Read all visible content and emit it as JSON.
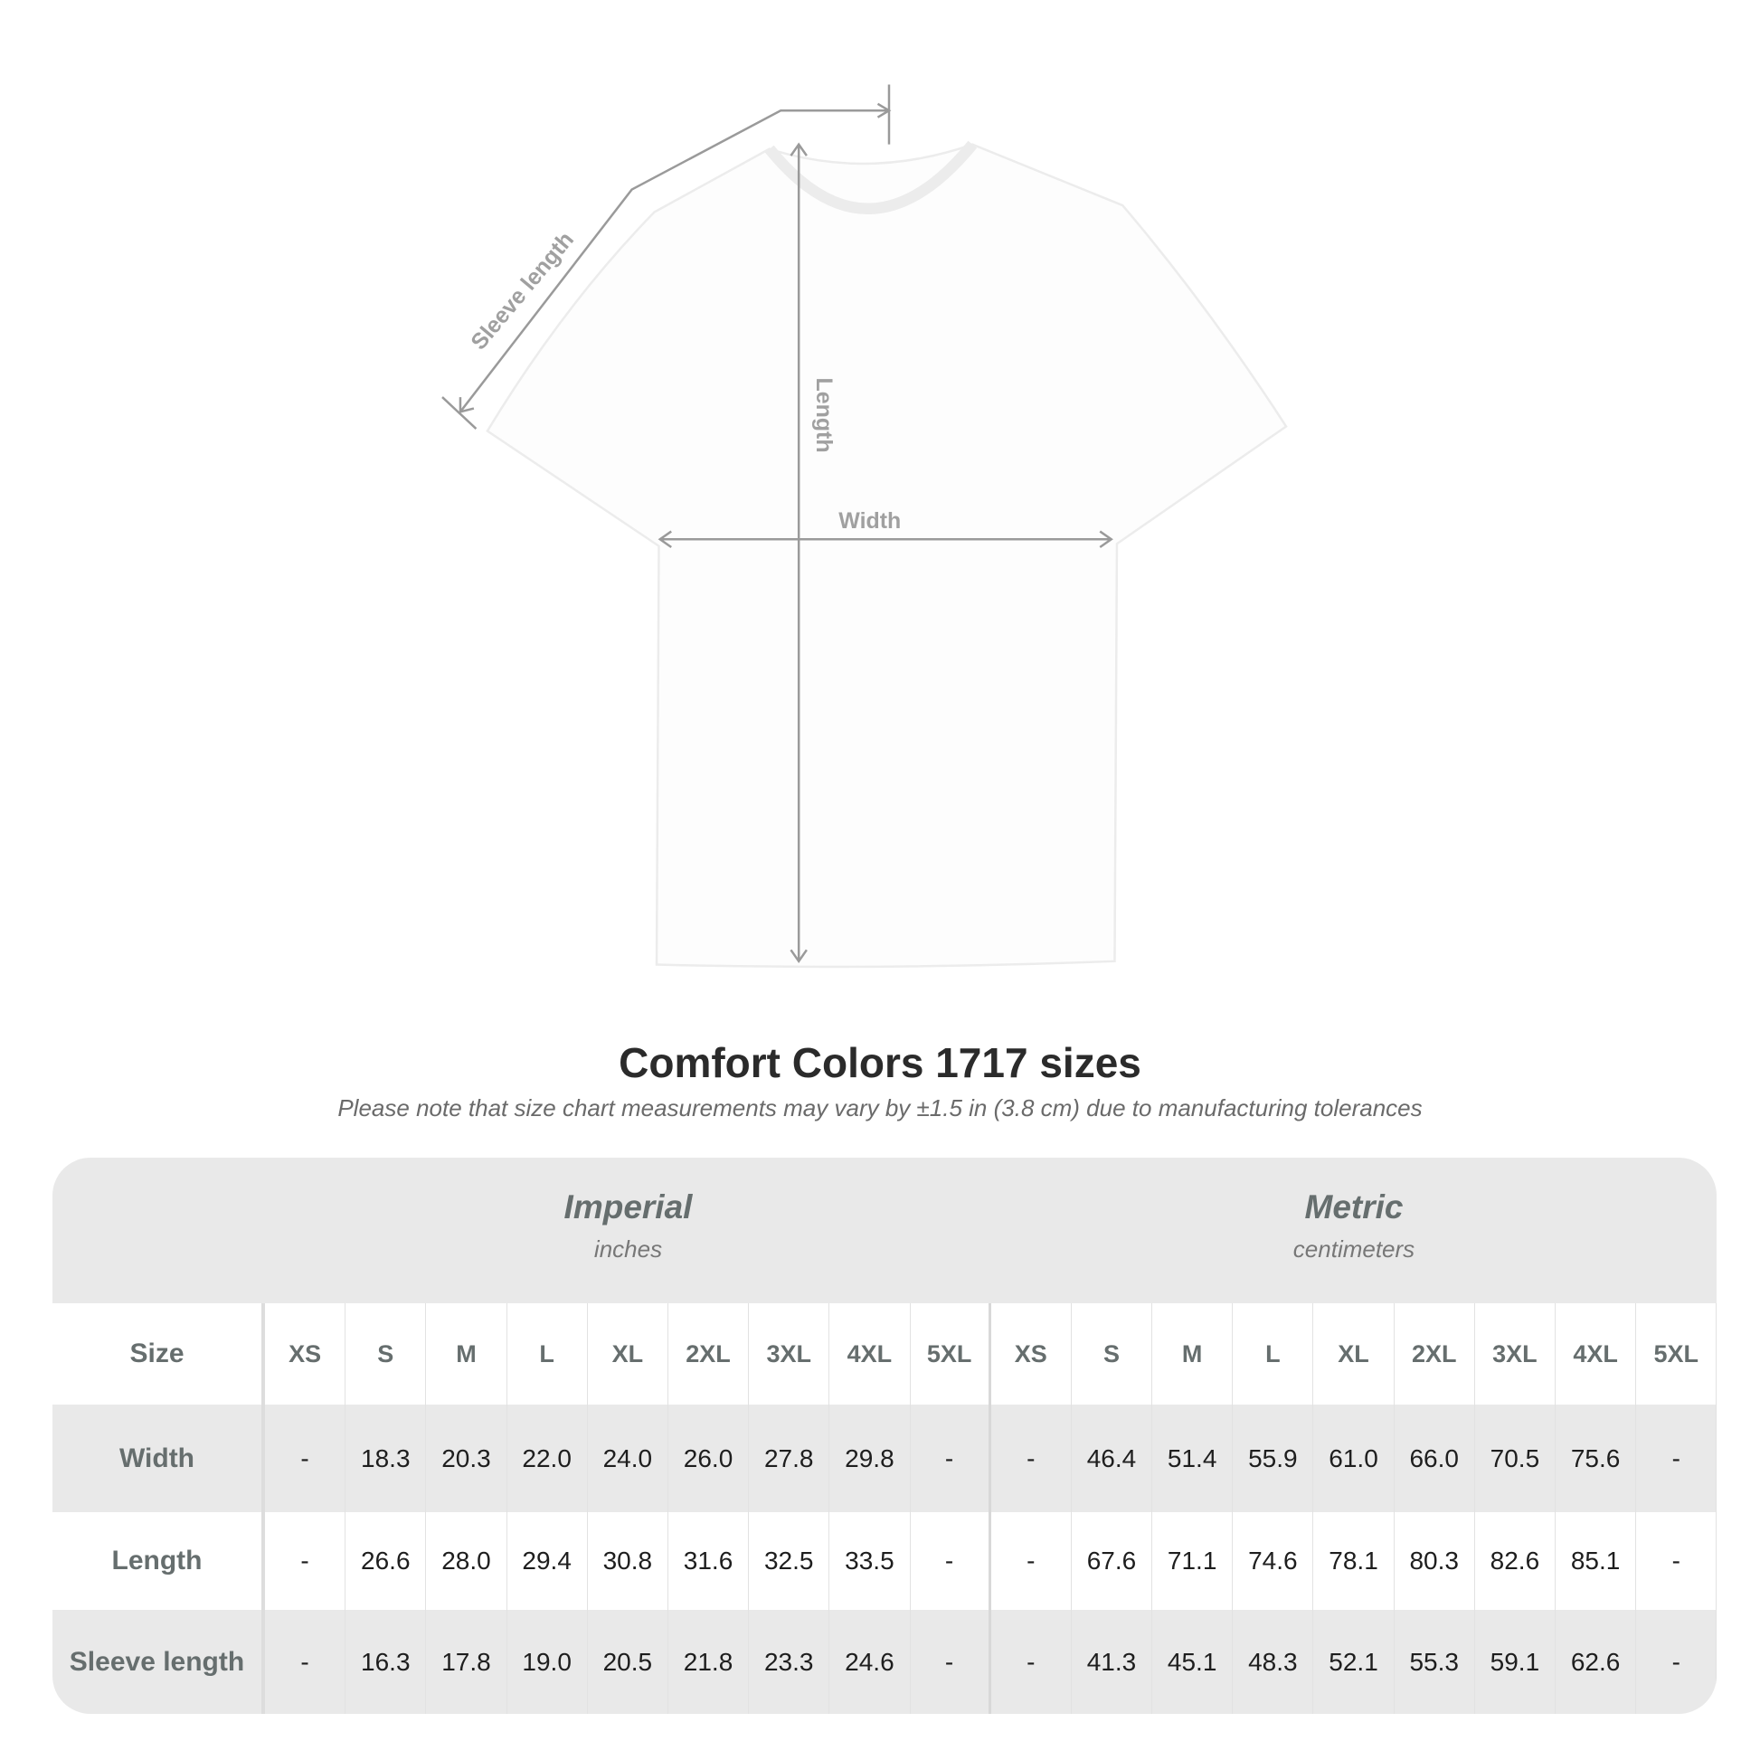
{
  "diagram": {
    "labels": {
      "sleeve": "Sleeve length",
      "length": "Length",
      "width": "Width"
    },
    "shirt_color": "#ffffff",
    "line_color": "#9a9a9a"
  },
  "title": "Comfort Colors 1717 sizes",
  "subtitle": "Please note that size chart measurements may vary by ±1.5 in (3.8 cm) due to manufacturing tolerances",
  "table": {
    "imperial": {
      "name": "Imperial",
      "unit": "inches"
    },
    "metric": {
      "name": "Metric",
      "unit": "centimeters"
    },
    "size_label": "Size",
    "sizes": [
      "XS",
      "S",
      "M",
      "L",
      "XL",
      "2XL",
      "3XL",
      "4XL",
      "5XL"
    ],
    "rows": [
      {
        "label": "Width",
        "imperial": [
          "-",
          "18.3",
          "20.3",
          "22.0",
          "24.0",
          "26.0",
          "27.8",
          "29.8",
          "-"
        ],
        "metric": [
          "-",
          "46.4",
          "51.4",
          "55.9",
          "61.0",
          "66.0",
          "70.5",
          "75.6",
          "-"
        ]
      },
      {
        "label": "Length",
        "imperial": [
          "-",
          "26.6",
          "28.0",
          "29.4",
          "30.8",
          "31.6",
          "32.5",
          "33.5",
          "-"
        ],
        "metric": [
          "-",
          "67.6",
          "71.1",
          "74.6",
          "78.1",
          "80.3",
          "82.6",
          "85.1",
          "-"
        ]
      },
      {
        "label": "Sleeve length",
        "imperial": [
          "-",
          "16.3",
          "17.8",
          "19.0",
          "20.5",
          "21.8",
          "23.3",
          "24.6",
          "-"
        ],
        "metric": [
          "-",
          "41.3",
          "45.1",
          "48.3",
          "52.1",
          "55.3",
          "59.1",
          "62.6",
          "-"
        ]
      }
    ]
  }
}
